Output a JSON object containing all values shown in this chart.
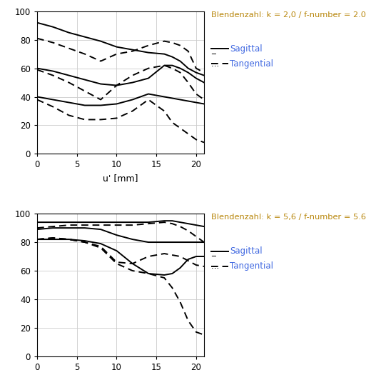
{
  "title1": "Blendenzahl: k = 2,0 / f-number = 2.0",
  "title2": "Blendenzahl: k = 5,6 / f-number = 5.6",
  "leg_sag": "Sagittal",
  "leg_tan": "Tangential",
  "xlabel": "u' [mm]",
  "xlim": [
    0,
    21
  ],
  "ylim": [
    0,
    100
  ],
  "xticks": [
    0,
    5,
    10,
    15,
    20
  ],
  "yticks": [
    0,
    20,
    40,
    60,
    80,
    100
  ],
  "title_color": "#b8860b",
  "legend_color": "#4169e1",
  "bg": "#ffffff",
  "x": [
    0,
    2,
    4,
    6,
    8,
    10,
    12,
    14,
    16,
    17,
    18,
    19,
    20,
    21
  ],
  "f2_sag1": [
    92,
    89,
    85,
    82,
    79,
    75,
    73,
    71,
    70,
    68,
    65,
    60,
    57,
    55
  ],
  "f2_tan1": [
    81,
    78,
    74,
    70,
    65,
    70,
    72,
    76,
    79,
    78,
    76,
    72,
    60,
    57
  ],
  "f2_sag2": [
    60,
    58,
    55,
    52,
    49,
    48,
    50,
    53,
    62,
    62,
    60,
    57,
    53,
    50
  ],
  "f2_tan2": [
    59,
    55,
    50,
    44,
    38,
    48,
    55,
    60,
    62,
    60,
    57,
    50,
    42,
    38
  ],
  "f2_sag3": [
    40,
    38,
    36,
    34,
    34,
    35,
    38,
    42,
    40,
    39,
    38,
    37,
    36,
    35
  ],
  "f2_tan3": [
    38,
    33,
    27,
    24,
    24,
    25,
    30,
    38,
    30,
    22,
    18,
    14,
    10,
    8
  ],
  "f56_sag1": [
    94,
    94,
    94,
    94,
    94,
    94,
    94,
    94,
    95,
    95,
    94,
    93,
    92,
    91
  ],
  "f56_tan1": [
    90,
    91,
    92,
    92,
    92,
    92,
    92,
    93,
    94,
    93,
    91,
    88,
    84,
    80
  ],
  "f56_sag2": [
    89,
    90,
    90,
    90,
    89,
    85,
    82,
    80,
    80,
    80,
    80,
    80,
    80,
    80
  ],
  "f56_tan2": [
    82,
    83,
    82,
    80,
    77,
    66,
    65,
    70,
    72,
    71,
    70,
    67,
    64,
    63
  ],
  "f56_sag3": [
    82,
    82,
    82,
    81,
    79,
    74,
    65,
    58,
    57,
    58,
    62,
    68,
    70,
    70
  ],
  "f56_tan3": [
    82,
    83,
    82,
    80,
    76,
    65,
    60,
    58,
    55,
    48,
    38,
    25,
    17,
    15
  ]
}
